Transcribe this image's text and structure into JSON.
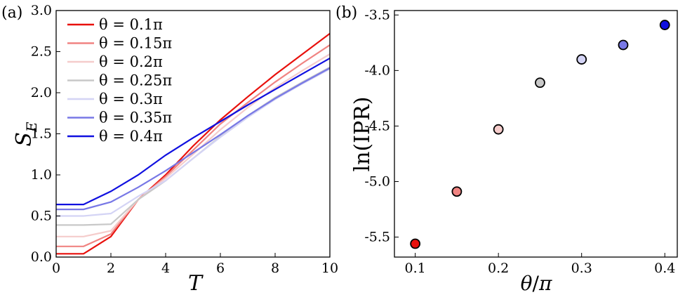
{
  "chart_data": [
    {
      "panel": "(a)",
      "type": "line",
      "xlabel": "T",
      "ylabel": "S_E",
      "xlim": [
        0,
        10
      ],
      "ylim": [
        0,
        3.0
      ],
      "xticks": [
        "0",
        "2",
        "4",
        "6",
        "8",
        "10"
      ],
      "yticks": [
        "0.0",
        "0.5",
        "1.0",
        "1.5",
        "2.0",
        "2.5",
        "3.0"
      ],
      "legend_placement": "upper-left",
      "x": [
        0,
        1,
        2,
        3,
        4,
        5,
        6,
        7,
        8,
        9,
        10
      ],
      "series": [
        {
          "name": "θ = 0.1π",
          "color": "#e8100c",
          "values": [
            0.04,
            0.04,
            0.25,
            0.7,
            1.0,
            1.35,
            1.67,
            1.95,
            2.22,
            2.47,
            2.72
          ]
        },
        {
          "name": "θ = 0.15π",
          "color": "#f08482",
          "values": [
            0.13,
            0.13,
            0.28,
            0.7,
            0.98,
            1.3,
            1.62,
            1.88,
            2.13,
            2.36,
            2.58
          ]
        },
        {
          "name": "θ = 0.2π",
          "color": "#f5cccb",
          "values": [
            0.25,
            0.25,
            0.32,
            0.7,
            0.96,
            1.25,
            1.55,
            1.82,
            2.06,
            2.27,
            2.47
          ]
        },
        {
          "name": "θ = 0.25π",
          "color": "#c8c8c8",
          "values": [
            0.39,
            0.39,
            0.4,
            0.7,
            0.93,
            1.2,
            1.47,
            1.72,
            1.94,
            2.13,
            2.31
          ]
        },
        {
          "name": "θ = 0.3π",
          "color": "#d4d4f5",
          "values": [
            0.5,
            0.5,
            0.53,
            0.74,
            0.93,
            1.2,
            1.46,
            1.7,
            1.92,
            2.11,
            2.29
          ]
        },
        {
          "name": "θ = 0.35π",
          "color": "#7878e6",
          "values": [
            0.58,
            0.58,
            0.67,
            0.85,
            1.05,
            1.27,
            1.49,
            1.72,
            1.93,
            2.12,
            2.3
          ]
        },
        {
          "name": "θ = 0.4π",
          "color": "#1010e0",
          "values": [
            0.64,
            0.64,
            0.8,
            1.0,
            1.24,
            1.45,
            1.65,
            1.85,
            2.04,
            2.23,
            2.42
          ]
        }
      ]
    },
    {
      "panel": "(b)",
      "type": "scatter",
      "xlabel": "θ/π",
      "ylabel": "ln(IPR)",
      "xlim": [
        0.075,
        0.415
      ],
      "ylim": [
        -5.68,
        -3.46
      ],
      "xticks": [
        "0.1",
        "0.2",
        "0.3",
        "0.4"
      ],
      "yticks": [
        "-3.5",
        "-4.0",
        "-4.5",
        "-5.0",
        "-5.5"
      ],
      "points": [
        {
          "x": 0.1,
          "y": -5.56,
          "color": "#e8100c"
        },
        {
          "x": 0.15,
          "y": -5.09,
          "color": "#f08482"
        },
        {
          "x": 0.2,
          "y": -4.53,
          "color": "#f5cccb"
        },
        {
          "x": 0.25,
          "y": -4.11,
          "color": "#c8c8c8"
        },
        {
          "x": 0.3,
          "y": -3.9,
          "color": "#d4d4f5"
        },
        {
          "x": 0.35,
          "y": -3.77,
          "color": "#7878e6"
        },
        {
          "x": 0.4,
          "y": -3.59,
          "color": "#1010e0"
        }
      ]
    }
  ]
}
